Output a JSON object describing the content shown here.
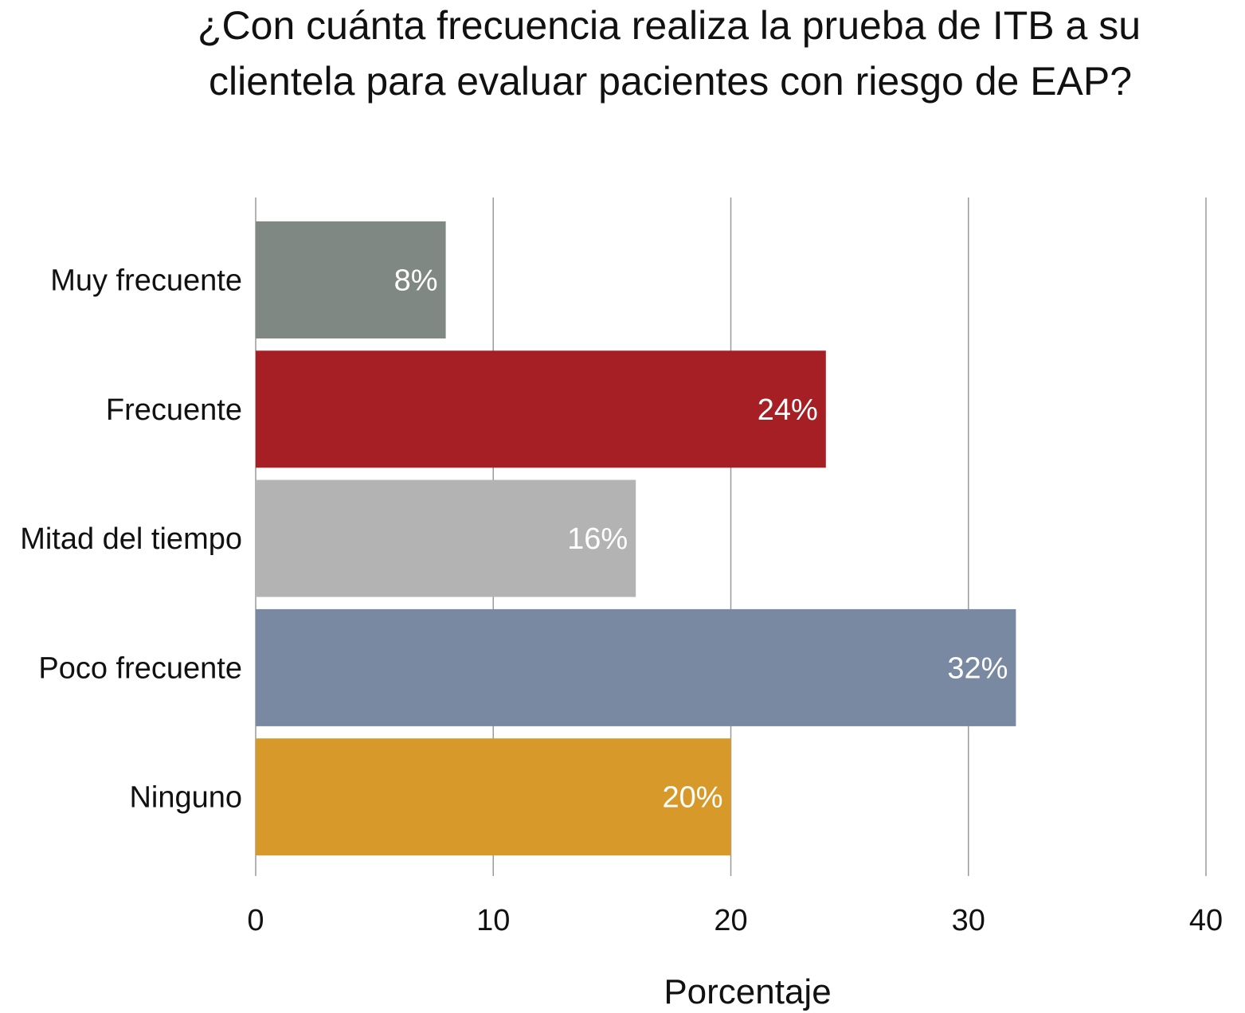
{
  "chart_data": {
    "type": "bar",
    "orientation": "horizontal",
    "title": "¿Con cuánta frecuencia realiza la prueba de ITB a su clientela para evaluar pacientes con riesgo de EAP?",
    "title_lines": [
      "¿Con cuánta frecuencia realiza la prueba de ITB a su",
      "clientela para evaluar pacientes con riesgo de EAP?"
    ],
    "categories": [
      "Muy frecuente",
      "Frecuente",
      "Mitad del tiempo",
      "Poco frecuente",
      "Ninguno"
    ],
    "values": [
      8,
      24,
      16,
      32,
      20
    ],
    "data_labels": [
      "8%",
      "24%",
      "16%",
      "32%",
      "20%"
    ],
    "colors": [
      "#808883",
      "#a61f24",
      "#b3b3b3",
      "#7a89a2",
      "#d79a2a"
    ],
    "xlabel": "Porcentaje",
    "ylabel": "",
    "xlim": [
      0,
      40
    ],
    "xticks": [
      "0",
      "10",
      "20",
      "30",
      "40"
    ],
    "grid": true,
    "gridline_color": "#9a9a9a"
  }
}
